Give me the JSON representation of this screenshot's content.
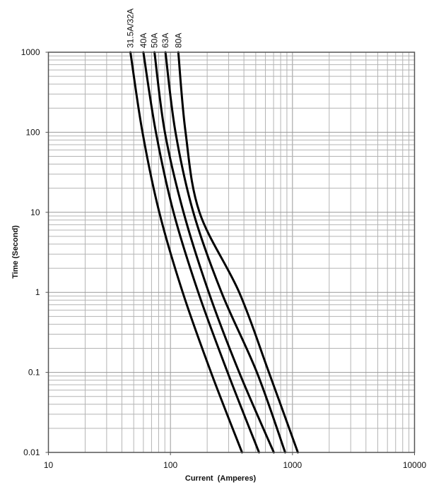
{
  "chart_data": {
    "type": "line",
    "title": "",
    "xlabel": "Current  (Amperes)",
    "ylabel": "Time (Second)",
    "xscale": "log",
    "yscale": "log",
    "xlim": [
      10,
      10000
    ],
    "ylim": [
      0.01,
      1000
    ],
    "x_ticks": [
      "10",
      "100",
      "1000",
      "10000"
    ],
    "y_ticks": [
      "1000",
      "100",
      "10",
      "1",
      "0.1",
      "0.01"
    ],
    "grid": true,
    "line_color": "#000000",
    "grid_color": "#b4b4b4",
    "series": [
      {
        "name": "31.5A/32A",
        "points": [
          [
            47,
            1000
          ],
          [
            59,
            100
          ],
          [
            81,
            10
          ],
          [
            126,
            1
          ],
          [
            215,
            0.1
          ],
          [
            386,
            0.01
          ]
        ]
      },
      {
        "name": "40A",
        "points": [
          [
            60,
            1000
          ],
          [
            76,
            100
          ],
          [
            106,
            10
          ],
          [
            169,
            1
          ],
          [
            294,
            0.1
          ],
          [
            532,
            0.01
          ]
        ]
      },
      {
        "name": "50A",
        "points": [
          [
            74,
            1000
          ],
          [
            90,
            100
          ],
          [
            128,
            10
          ],
          [
            206,
            1
          ],
          [
            366,
            0.1
          ],
          [
            703,
            0.01
          ]
        ]
      },
      {
        "name": "63A",
        "points": [
          [
            91,
            1000
          ],
          [
            110,
            100
          ],
          [
            154,
            10
          ],
          [
            262,
            1
          ],
          [
            511,
            0.1
          ],
          [
            871,
            0.01
          ]
        ]
      },
      {
        "name": "80A",
        "points": [
          [
            116,
            1000
          ],
          [
            133,
            100
          ],
          [
            173,
            10
          ],
          [
            366,
            1
          ],
          [
            641,
            0.1
          ],
          [
            1107,
            0.01
          ]
        ]
      }
    ]
  }
}
